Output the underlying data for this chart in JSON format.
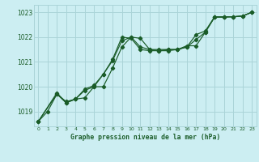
{
  "title": "Graphe pression niveau de la mer (hPa)",
  "background_color": "#cceef2",
  "grid_color": "#aad4d8",
  "line_color": "#1a5c28",
  "text_color": "#1a5c28",
  "xlim": [
    -0.5,
    23.5
  ],
  "ylim": [
    1018.4,
    1023.3
  ],
  "yticks": [
    1019,
    1020,
    1021,
    1022,
    1023
  ],
  "xticks": [
    0,
    1,
    2,
    3,
    4,
    5,
    6,
    7,
    8,
    9,
    10,
    11,
    12,
    13,
    14,
    15,
    16,
    17,
    18,
    19,
    20,
    21,
    22,
    23
  ],
  "line1_x": [
    0,
    1,
    2,
    3,
    4,
    5,
    6,
    7,
    8,
    9,
    10,
    11,
    12,
    13,
    14,
    15,
    16,
    17,
    18,
    19,
    20,
    21,
    22,
    23
  ],
  "line1_y": [
    1018.6,
    1019.0,
    1019.7,
    1019.4,
    1019.5,
    1019.55,
    1020.0,
    1020.5,
    1021.05,
    1021.85,
    1022.0,
    1021.95,
    1021.5,
    1021.45,
    1021.45,
    1021.5,
    1021.6,
    1021.9,
    1022.2,
    1022.8,
    1022.8,
    1022.82,
    1022.85,
    1023.0
  ],
  "line2_x": [
    0,
    2,
    3,
    4,
    5,
    6,
    7,
    8,
    9,
    10,
    11,
    12,
    13,
    14,
    15,
    16,
    17,
    18,
    19,
    20,
    21,
    22,
    23
  ],
  "line2_y": [
    1018.6,
    1019.7,
    1019.35,
    1019.5,
    1019.9,
    1020.05,
    1020.5,
    1021.1,
    1022.0,
    1021.95,
    1021.5,
    1021.45,
    1021.45,
    1021.5,
    1021.5,
    1021.6,
    1022.1,
    1022.25,
    1022.82,
    1022.82,
    1022.82,
    1022.85,
    1023.0
  ],
  "line3_x": [
    0,
    2,
    3,
    4,
    5,
    6,
    7,
    8,
    9,
    10,
    11,
    12,
    13,
    14,
    15,
    16,
    17,
    18,
    19,
    20,
    21,
    22,
    23
  ],
  "line3_y": [
    1018.6,
    1019.75,
    1019.35,
    1019.5,
    1019.85,
    1020.0,
    1020.0,
    1020.75,
    1021.6,
    1022.0,
    1021.6,
    1021.5,
    1021.5,
    1021.5,
    1021.5,
    1021.65,
    1021.65,
    1022.2,
    1022.82,
    1022.82,
    1022.82,
    1022.85,
    1023.0
  ]
}
